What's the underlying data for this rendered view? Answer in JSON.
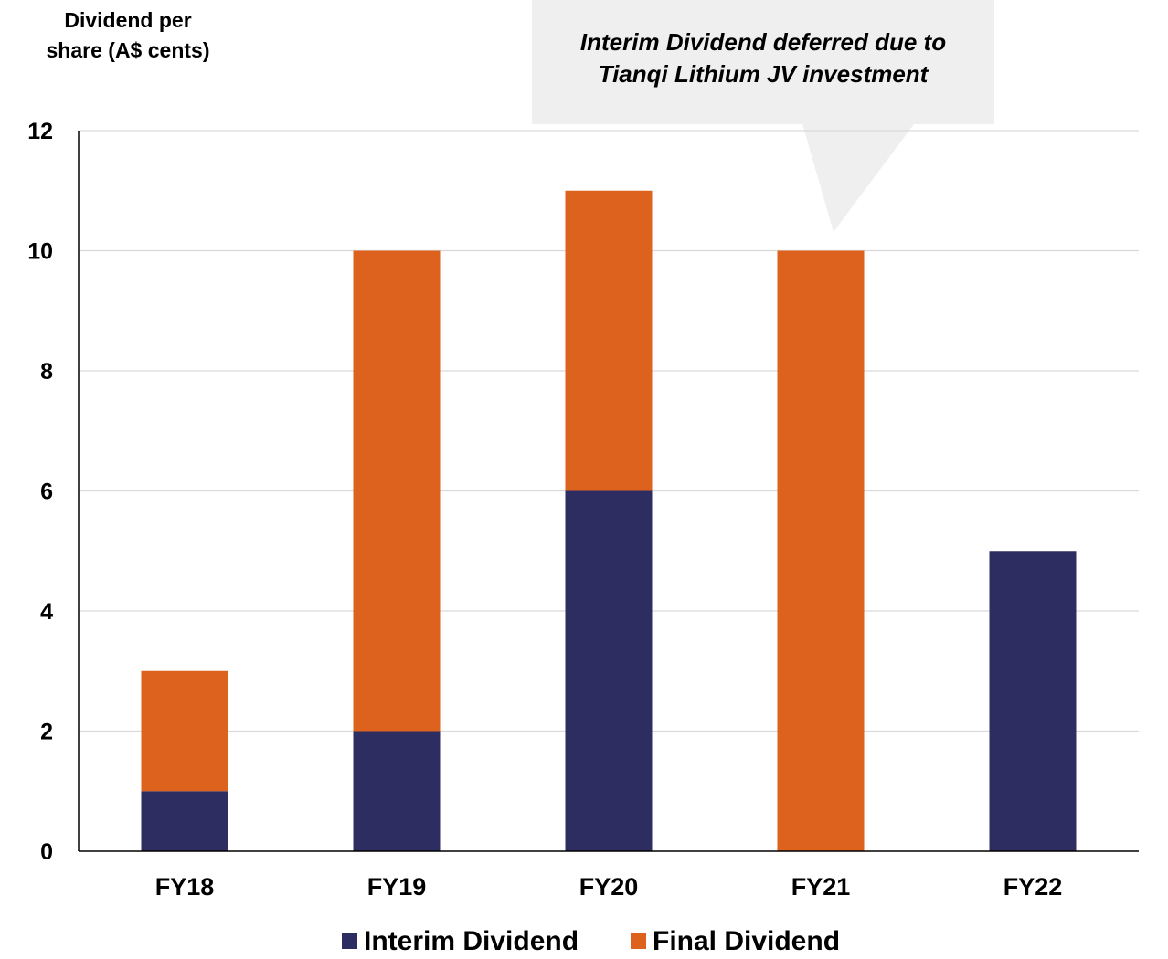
{
  "chart_data": {
    "type": "bar",
    "stacked": true,
    "ylabel_line1": "Dividend per",
    "ylabel_line2": "share (A$ cents)",
    "categories": [
      "FY18",
      "FY19",
      "FY20",
      "FY21",
      "FY22"
    ],
    "series": [
      {
        "name": "Interim Dividend",
        "color": "#2e2d62",
        "values": [
          1,
          2,
          6,
          0,
          5
        ]
      },
      {
        "name": "Final Dividend",
        "color": "#dd621e",
        "values": [
          2,
          8,
          5,
          10,
          0
        ]
      }
    ],
    "ylim": [
      0,
      12
    ],
    "yticks": [
      0,
      2,
      4,
      6,
      8,
      10,
      12
    ],
    "grid": true,
    "legend_position": "bottom",
    "annotation": {
      "line1": "Interim Dividend deferred due to",
      "line2": "Tianqi Lithium JV investment",
      "points_to": "FY21",
      "background": "#efefef"
    }
  }
}
